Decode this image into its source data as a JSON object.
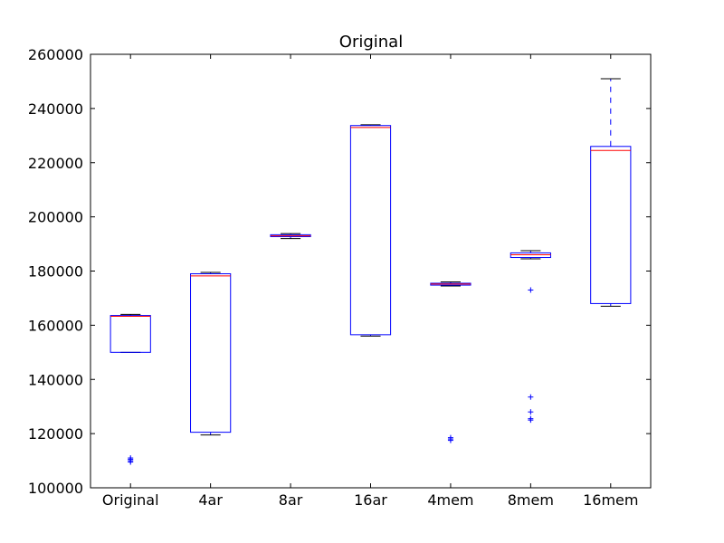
{
  "chart_data": {
    "type": "box",
    "title": "Original",
    "xlabel": "",
    "ylabel": "",
    "ylim": [
      100000,
      260000
    ],
    "yticks": [
      100000,
      120000,
      140000,
      160000,
      180000,
      200000,
      220000,
      240000,
      260000
    ],
    "ytick_labels": [
      "100000",
      "120000",
      "140000",
      "160000",
      "180000",
      "200000",
      "220000",
      "240000",
      "260000"
    ],
    "categories": [
      "Original",
      "4ar",
      "8ar",
      "16ar",
      "4mem",
      "8mem",
      "16mem"
    ],
    "grid": false,
    "colors": {
      "box": "#0000ff",
      "median": "#ff0000",
      "whisker": "#0000ff",
      "cap": "#000000",
      "flier": "#0000ff"
    },
    "boxes": [
      {
        "category": "Original",
        "whislo": 150000,
        "q1": 150000,
        "med": 163300,
        "q3": 163600,
        "whishi": 164000,
        "fliers": [
          109500,
          110000,
          110500,
          111000
        ]
      },
      {
        "category": "4ar",
        "whislo": 119500,
        "q1": 120500,
        "med": 178200,
        "q3": 179000,
        "whishi": 179500,
        "fliers": []
      },
      {
        "category": "8ar",
        "whislo": 192000,
        "q1": 192700,
        "med": 193000,
        "q3": 193400,
        "whishi": 193800,
        "fliers": []
      },
      {
        "category": "16ar",
        "whislo": 156000,
        "q1": 156500,
        "med": 233000,
        "q3": 233700,
        "whishi": 234000,
        "fliers": []
      },
      {
        "category": "4mem",
        "whislo": 174500,
        "q1": 174800,
        "med": 175200,
        "q3": 175500,
        "whishi": 176000,
        "fliers": [
          117500,
          118000,
          118500
        ]
      },
      {
        "category": "8mem",
        "whislo": 184500,
        "q1": 185000,
        "med": 186000,
        "q3": 186700,
        "whishi": 187500,
        "fliers": [
          173000,
          133500,
          128000,
          125000,
          125500
        ]
      },
      {
        "category": "16mem",
        "whislo": 167000,
        "q1": 168000,
        "med": 224500,
        "q3": 226000,
        "whishi": 251000,
        "fliers": []
      }
    ]
  }
}
